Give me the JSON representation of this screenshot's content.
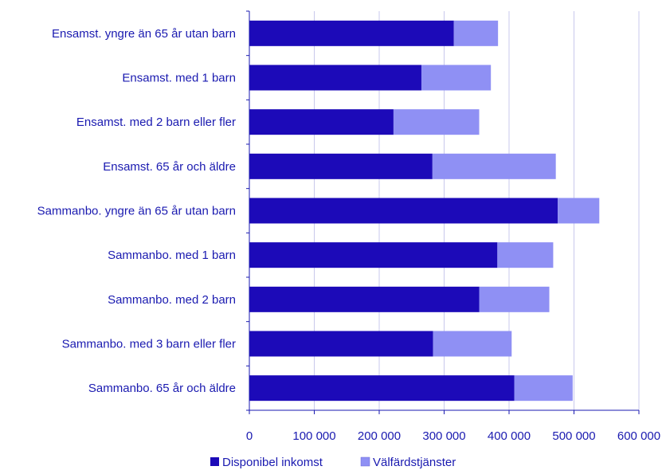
{
  "chart_data": {
    "type": "bar",
    "orientation": "horizontal",
    "stacked": true,
    "categories": [
      "Ensamst. yngre än 65 år utan barn",
      "Ensamst. med 1 barn",
      "Ensamst. med 2 barn eller fler",
      "Ensamst. 65 år och äldre",
      "Sammanbo. yngre än 65 år utan barn",
      "Sammanbo. med 1 barn",
      "Sammanbo. med 2 barn",
      "Sammanbo. med 3 barn eller fler",
      "Sammanbo.  65 år och äldre"
    ],
    "series": [
      {
        "name": "Disponibel inkomst",
        "color": "#1c0ab8",
        "values": [
          315000,
          265000,
          222000,
          282000,
          475000,
          382000,
          354000,
          283000,
          408000
        ]
      },
      {
        "name": "Välfärdstjänster",
        "color": "#8f90f4",
        "values": [
          68000,
          107000,
          132000,
          190000,
          64000,
          86000,
          108000,
          121000,
          90000
        ]
      }
    ],
    "xlim": [
      0,
      600000
    ],
    "xticks": [
      0,
      100000,
      200000,
      300000,
      400000,
      500000,
      600000
    ],
    "xtick_labels": [
      "0",
      "100 000",
      "200 000",
      "300 000",
      "400 000",
      "500 000",
      "600 000"
    ],
    "grid": "vertical",
    "legend": "bottom",
    "title": "",
    "xlabel": "",
    "ylabel": ""
  }
}
